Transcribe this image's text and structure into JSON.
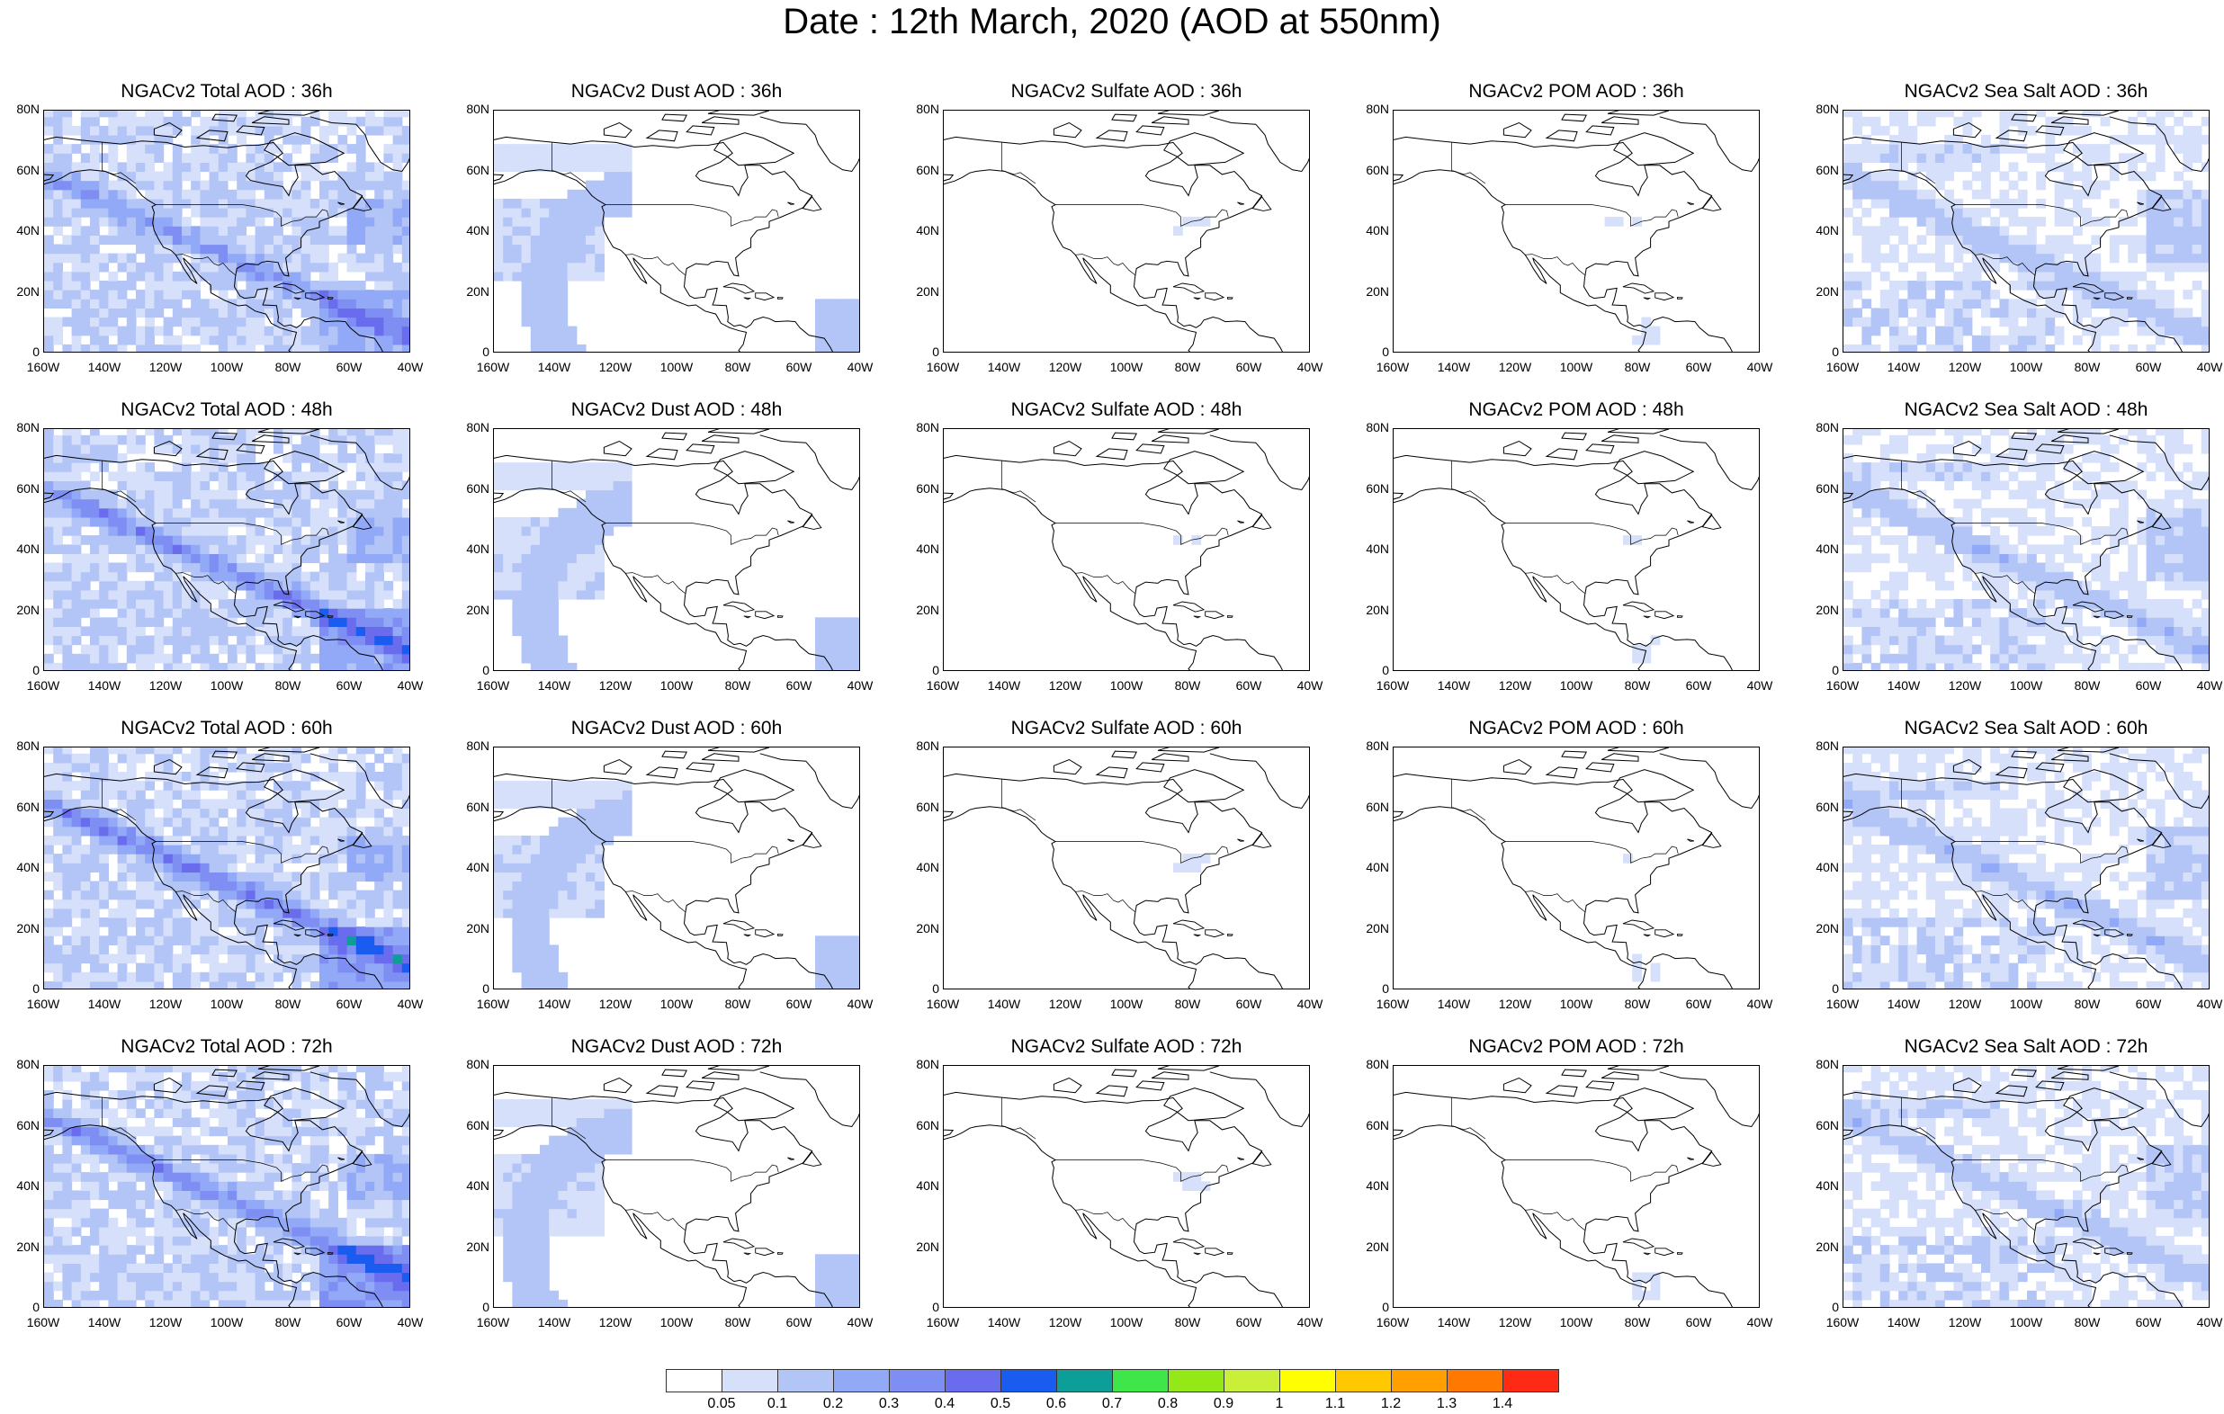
{
  "title": "Date : 12th March, 2020 (AOD at 550nm)",
  "columns": [
    {
      "species": "total",
      "label_prefix": "NGACv2 Total AOD : "
    },
    {
      "species": "dust",
      "label_prefix": "NGACv2 Dust AOD : "
    },
    {
      "species": "sulfate",
      "label_prefix": "NGACv2 Sulfate AOD : "
    },
    {
      "species": "pom",
      "label_prefix": "NGACv2 POM AOD : "
    },
    {
      "species": "seasalt",
      "label_prefix": "NGACv2 Sea Salt AOD : "
    }
  ],
  "panel_titles": [
    [
      "NGACv2 Total AOD : 36h",
      "NGACv2 Dust AOD : 36h",
      "NGACv2 Sulfate AOD : 36h",
      "NGACv2 POM AOD : 36h",
      "NGACv2 Sea Salt AOD : 36h"
    ],
    [
      "NGACv2 Total AOD : 48h",
      "NGACv2 Dust AOD : 48h",
      "NGACv2 Sulfate AOD : 48h",
      "NGACv2 POM AOD : 48h",
      "NGACv2 Sea Salt AOD : 48h"
    ],
    [
      "NGACv2 Total AOD : 60h",
      "NGACv2 Dust AOD : 60h",
      "NGACv2 Sulfate AOD : 60h",
      "NGACv2 POM AOD : 60h",
      "NGACv2 Sea Salt AOD : 60h"
    ],
    [
      "NGACv2 Total AOD : 72h",
      "NGACv2 Dust AOD : 72h",
      "NGACv2 Sulfate AOD : 72h",
      "NGACv2 POM AOD : 72h",
      "NGACv2 Sea Salt  AOD : 72h"
    ]
  ],
  "lat_ticks": [
    "80N",
    "60N",
    "40N",
    "20N",
    "0"
  ],
  "lon_ticks": [
    "160W",
    "140W",
    "120W",
    "100W",
    "80W",
    "60W",
    "40W"
  ],
  "lat_range": [
    0,
    80
  ],
  "lon_range": [
    -160,
    -40
  ],
  "colorbar": {
    "colors": [
      "#ffffff",
      "#d6e0fb",
      "#b3c5f7",
      "#91a9f6",
      "#7e8ef2",
      "#6a6cee",
      "#1a5cf0",
      "#0d9e98",
      "#3ee64a",
      "#94e818",
      "#c9ef38",
      "#ffff00",
      "#ffc800",
      "#ff9f00",
      "#ff7800",
      "#ff2a14"
    ],
    "labels": [
      "0.05",
      "0.1",
      "0.2",
      "0.3",
      "0.4",
      "0.5",
      "0.6",
      "0.7",
      "0.8",
      "0.9",
      "1",
      "1.1",
      "1.2",
      "1.3",
      "1.4"
    ]
  },
  "plume_levels": {
    "total": [
      0.22,
      0.28,
      0.3,
      0.26
    ],
    "dust": [
      0.1,
      0.1,
      0.1,
      0.1
    ],
    "sulfate": [
      0.06,
      0.06,
      0.06,
      0.06
    ],
    "pom": [
      0.05,
      0.05,
      0.05,
      0.05
    ],
    "seasalt": [
      0.12,
      0.14,
      0.14,
      0.12
    ]
  }
}
